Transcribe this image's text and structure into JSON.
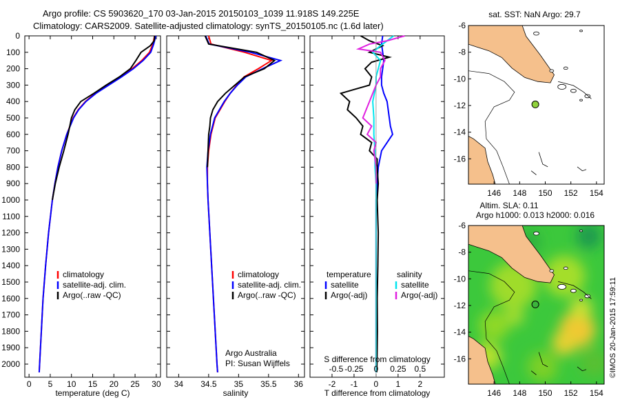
{
  "header": {
    "title_line1": "Argo profile: CS 5903620_170 03-Jan-2015 20150103_1039 11.918S 149.225E",
    "title_line2": "Climatology: CARS2009. Satellite-adjusted climatology: synTS_20150105.nc (1.6d later)"
  },
  "watermark": "©IMOS 20-Jan-2015 17:59:11",
  "colors": {
    "climatology": "#ff0000",
    "satellite": "#0000ff",
    "argo": "#000000",
    "sal_satellite": "#00e5ee",
    "sal_argo": "#e020e0",
    "land": "#f5c08c"
  },
  "chart_data": [
    {
      "type": "line",
      "id": "temperature",
      "xlabel": "temperature (deg C)",
      "ylabel": "",
      "xlim": [
        -1,
        31
      ],
      "ylim": [
        2080,
        0
      ],
      "xticks": [
        0,
        5,
        10,
        15,
        20,
        25,
        30
      ],
      "yticks": [
        0,
        100,
        200,
        300,
        400,
        500,
        600,
        700,
        800,
        900,
        1000,
        1100,
        1200,
        1300,
        1400,
        1500,
        1600,
        1700,
        1800,
        1900,
        2000
      ],
      "legend": [
        "climatology",
        "satellite-adj. clim.",
        "Argo(..raw -QC)"
      ],
      "series": [
        {
          "name": "climatology",
          "color": "#ff0000",
          "depth": [
            0,
            50,
            100,
            150,
            200,
            250,
            300,
            350,
            400,
            450,
            500,
            600,
            700,
            800,
            900,
            1000,
            1200,
            1400,
            1600,
            1800,
            2000,
            2050
          ],
          "values": [
            29.6,
            29.2,
            28.4,
            26.6,
            24.3,
            21.6,
            18.6,
            15.6,
            13.3,
            11.6,
            10.4,
            8.9,
            7.7,
            6.8,
            6.1,
            5.5,
            4.6,
            3.9,
            3.3,
            2.9,
            2.5,
            2.4
          ]
        },
        {
          "name": "satellite-adj. clim.",
          "color": "#0000ff",
          "depth": [
            0,
            50,
            100,
            150,
            200,
            250,
            300,
            350,
            400,
            450,
            500,
            600,
            700,
            800,
            900,
            1000,
            1200,
            1400,
            1600,
            1800,
            2000,
            2050
          ],
          "values": [
            29.9,
            29.4,
            28.7,
            26.9,
            24.6,
            21.8,
            18.8,
            15.8,
            13.4,
            11.7,
            10.5,
            8.9,
            7.7,
            6.8,
            6.1,
            5.5,
            4.6,
            3.9,
            3.3,
            2.9,
            2.5,
            2.4
          ]
        },
        {
          "name": "Argo(..raw -QC)",
          "color": "#000000",
          "depth": [
            0,
            30,
            60,
            100,
            150,
            200,
            250,
            300,
            350,
            400,
            450,
            500,
            550,
            600,
            700,
            800,
            900,
            1000
          ],
          "values": [
            29.6,
            29.5,
            28.6,
            26.4,
            25.2,
            23.9,
            21.3,
            18.2,
            15.3,
            12.2,
            10.8,
            10.0,
            9.6,
            9.2,
            8.2,
            7.1,
            6.2,
            5.5
          ]
        }
      ]
    },
    {
      "type": "line",
      "id": "salinity",
      "xlabel": "salinity",
      "xlim": [
        33.8,
        36.1
      ],
      "ylim": [
        2080,
        0
      ],
      "xticks": [
        34,
        34.5,
        35,
        35.5,
        36
      ],
      "legend": [
        "climatology",
        "satellite-adj. clim.",
        "Argo(..raw -QC)"
      ],
      "annotation": [
        "Argo Australia",
        "PI: Susan Wijffels"
      ],
      "series": [
        {
          "name": "climatology",
          "color": "#ff0000",
          "depth": [
            0,
            50,
            100,
            150,
            200,
            250,
            300,
            350,
            400,
            450,
            500,
            600,
            700,
            800,
            900,
            1000,
            1200,
            1400,
            1600,
            1800,
            2000,
            2050
          ],
          "values": [
            34.5,
            34.54,
            35.1,
            35.55,
            35.33,
            35.09,
            34.97,
            34.86,
            34.77,
            34.69,
            34.61,
            34.54,
            34.5,
            34.48,
            34.48,
            34.49,
            34.52,
            34.55,
            34.58,
            34.61,
            34.64,
            34.65
          ]
        },
        {
          "name": "satellite-adj. clim.",
          "color": "#0000ff",
          "depth": [
            0,
            50,
            100,
            150,
            200,
            250,
            300,
            350,
            400,
            450,
            500,
            600,
            700,
            800,
            900,
            1000,
            1200,
            1400,
            1600,
            1800,
            2000,
            2050
          ],
          "values": [
            34.45,
            34.51,
            35.2,
            35.7,
            35.4,
            35.12,
            34.98,
            34.86,
            34.76,
            34.68,
            34.6,
            34.53,
            34.49,
            34.47,
            34.48,
            34.49,
            34.52,
            34.55,
            34.58,
            34.61,
            34.64,
            34.65
          ]
        },
        {
          "name": "Argo(..raw -QC)",
          "color": "#000000",
          "depth": [
            0,
            50,
            100,
            150,
            200,
            250,
            300,
            350,
            400,
            450,
            500,
            550,
            600,
            700,
            800
          ],
          "values": [
            34.44,
            34.5,
            35.3,
            35.6,
            35.43,
            35.1,
            34.94,
            34.78,
            34.65,
            34.57,
            34.53,
            34.52,
            34.5,
            34.49,
            34.48
          ]
        }
      ]
    },
    {
      "type": "line",
      "id": "difference",
      "xlabel": "T difference from climatology",
      "xlabel2": "S difference from climatology",
      "xlim": [
        -3,
        3.1
      ],
      "ylim": [
        2080,
        0
      ],
      "xticks": [
        -2,
        -1,
        0,
        1,
        2
      ],
      "xticks2": [
        "-0.5",
        "-0.25",
        "0",
        "0.25",
        "0.5"
      ],
      "legend_temperature": [
        "temperature",
        "satellite",
        "Argo(-adj)"
      ],
      "legend_salinity": [
        "salinity",
        "satellite",
        "Argo(-adj)"
      ],
      "series": [
        {
          "name": "temperature satellite",
          "color": "#0000ff",
          "depth": [
            0,
            50,
            100,
            150,
            200,
            250,
            300,
            350,
            400,
            450,
            500,
            550,
            600,
            650,
            700,
            800,
            900,
            1000,
            1500,
            2050
          ],
          "values": [
            0.3,
            0.25,
            0.3,
            0.35,
            0.3,
            0.25,
            0.25,
            0.35,
            0.5,
            0.55,
            0.6,
            0.65,
            0.75,
            0.5,
            0.25,
            0.1,
            0.05,
            0.0,
            0.0,
            0.0
          ]
        },
        {
          "name": "temperature Argo(-adj)",
          "color": "#000000",
          "depth": [
            0,
            30,
            60,
            100,
            130,
            160,
            200,
            250,
            300,
            350,
            400,
            450,
            500,
            550,
            600,
            650,
            700,
            750,
            800,
            900,
            1000,
            1200,
            1400,
            1600,
            1800,
            2000,
            2050
          ],
          "values": [
            -0.7,
            -0.3,
            0.3,
            -0.3,
            0.6,
            -0.2,
            -0.5,
            -0.2,
            -0.3,
            -1.6,
            -1.2,
            -1.3,
            -0.9,
            -0.6,
            -0.7,
            -0.2,
            -0.3,
            0.05,
            0.05,
            0.1,
            0.05,
            0.1,
            0.08,
            0.05,
            0.06,
            0.04,
            0.03
          ]
        },
        {
          "name": "salinity satellite",
          "color": "#00e5ee",
          "depth": [
            0,
            30,
            60,
            100,
            150,
            200,
            250,
            300,
            400,
            500,
            600,
            700,
            800,
            900,
            1000,
            1500,
            2050
          ],
          "values": [
            0.8,
            0.5,
            0.2,
            -0.15,
            0.2,
            0.1,
            0.0,
            0.0,
            -0.15,
            -0.1,
            -0.1,
            -0.05,
            -0.05,
            0.0,
            0.0,
            0.0,
            0.0
          ]
        },
        {
          "name": "salinity Argo(-adj)",
          "color": "#e020e0",
          "depth": [
            0,
            30,
            50,
            80,
            100,
            150,
            200,
            250,
            300,
            400,
            500,
            550,
            600,
            650,
            700,
            800,
            900
          ],
          "values": [
            1.3,
            0.5,
            -0.3,
            -0.8,
            0.2,
            0.4,
            0.2,
            0.2,
            0.0,
            -0.3,
            -0.6,
            -0.2,
            -0.4,
            0.0,
            -0.1,
            0.0,
            0.0
          ]
        }
      ]
    },
    {
      "type": "map",
      "id": "sst_map",
      "title": "sat. SST: NaN Argo: 29.7",
      "xlim": [
        144,
        154.6
      ],
      "ylim": [
        -17.9,
        -6
      ],
      "xticks": [
        146,
        148,
        150,
        152,
        154
      ],
      "yticks": [
        -6,
        -8,
        -10,
        -12,
        -14,
        -16
      ],
      "marker": {
        "lon": 149.225,
        "lat": -11.918
      }
    },
    {
      "type": "map",
      "id": "sla_map",
      "title": "Altim. SLA: 0.11",
      "title2": "Argo h1000: 0.013 h2000: 0.016",
      "xlim": [
        144,
        154.6
      ],
      "ylim": [
        -17.9,
        -6
      ],
      "xticks": [
        146,
        148,
        150,
        152,
        154
      ],
      "yticks": [
        -6,
        -8,
        -10,
        -12,
        -14,
        -16
      ],
      "marker": {
        "lon": 149.225,
        "lat": -11.918
      }
    }
  ]
}
